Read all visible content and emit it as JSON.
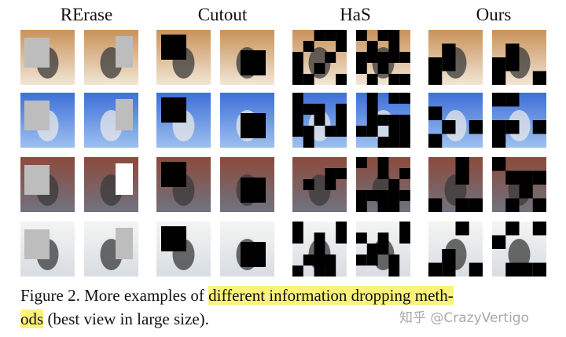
{
  "figure": {
    "column_headers": [
      "RErase",
      "Cutout",
      "HaS",
      "Ours"
    ]
  },
  "caption": {
    "lead": "Figure 2. More examples of",
    "highlight_1": "different information dropping meth-",
    "highlight_2": "ods",
    "tail": "(best view in large size)."
  },
  "watermark": "知乎 @CrazyVertigo"
}
